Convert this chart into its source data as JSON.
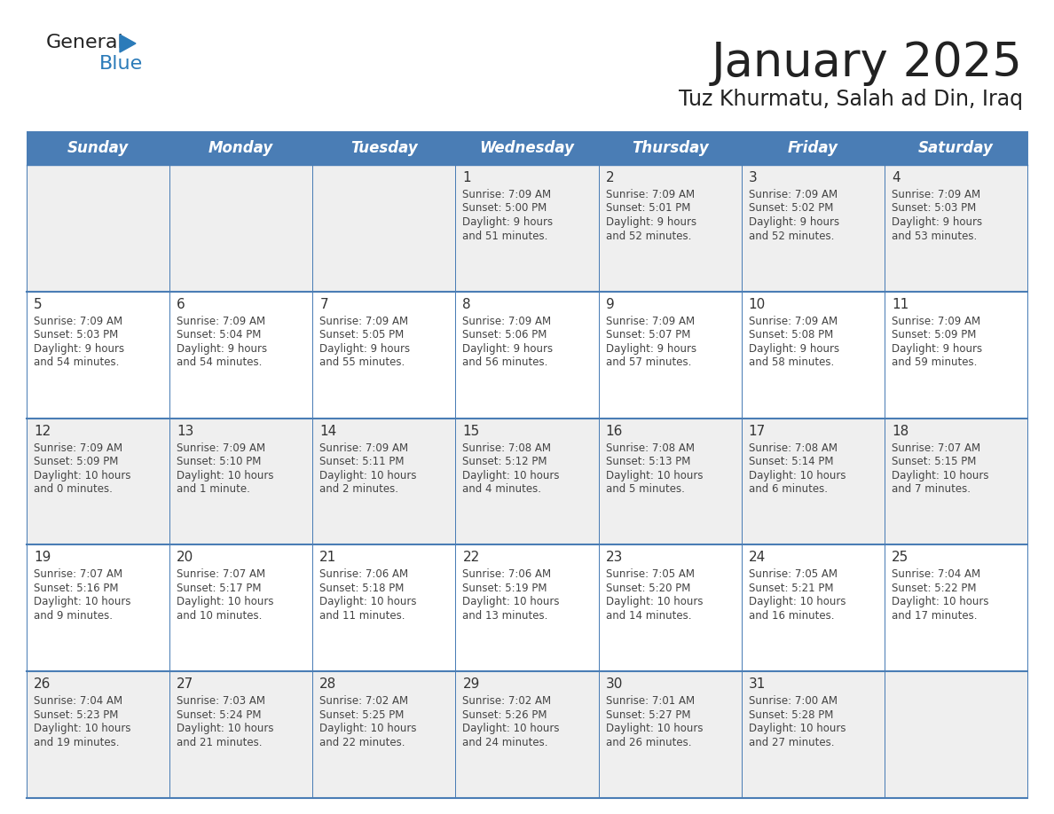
{
  "title": "January 2025",
  "subtitle": "Tuz Khurmatu, Salah ad Din, Iraq",
  "days_of_week": [
    "Sunday",
    "Monday",
    "Tuesday",
    "Wednesday",
    "Thursday",
    "Friday",
    "Saturday"
  ],
  "header_bg": "#4A7DB5",
  "header_text_color": "#FFFFFF",
  "cell_bg_odd": "#EFEFEF",
  "cell_bg_even": "#FFFFFF",
  "border_color": "#4A7DB5",
  "text_color": "#444444",
  "day_number_color": "#333333",
  "calendar_data": [
    [
      null,
      null,
      null,
      {
        "day": "1",
        "sunrise": "7:09 AM",
        "sunset": "5:00 PM",
        "daylight_h": "9 hours",
        "daylight_m": "and 51 minutes."
      },
      {
        "day": "2",
        "sunrise": "7:09 AM",
        "sunset": "5:01 PM",
        "daylight_h": "9 hours",
        "daylight_m": "and 52 minutes."
      },
      {
        "day": "3",
        "sunrise": "7:09 AM",
        "sunset": "5:02 PM",
        "daylight_h": "9 hours",
        "daylight_m": "and 52 minutes."
      },
      {
        "day": "4",
        "sunrise": "7:09 AM",
        "sunset": "5:03 PM",
        "daylight_h": "9 hours",
        "daylight_m": "and 53 minutes."
      }
    ],
    [
      {
        "day": "5",
        "sunrise": "7:09 AM",
        "sunset": "5:03 PM",
        "daylight_h": "9 hours",
        "daylight_m": "and 54 minutes."
      },
      {
        "day": "6",
        "sunrise": "7:09 AM",
        "sunset": "5:04 PM",
        "daylight_h": "9 hours",
        "daylight_m": "and 54 minutes."
      },
      {
        "day": "7",
        "sunrise": "7:09 AM",
        "sunset": "5:05 PM",
        "daylight_h": "9 hours",
        "daylight_m": "and 55 minutes."
      },
      {
        "day": "8",
        "sunrise": "7:09 AM",
        "sunset": "5:06 PM",
        "daylight_h": "9 hours",
        "daylight_m": "and 56 minutes."
      },
      {
        "day": "9",
        "sunrise": "7:09 AM",
        "sunset": "5:07 PM",
        "daylight_h": "9 hours",
        "daylight_m": "and 57 minutes."
      },
      {
        "day": "10",
        "sunrise": "7:09 AM",
        "sunset": "5:08 PM",
        "daylight_h": "9 hours",
        "daylight_m": "and 58 minutes."
      },
      {
        "day": "11",
        "sunrise": "7:09 AM",
        "sunset": "5:09 PM",
        "daylight_h": "9 hours",
        "daylight_m": "and 59 minutes."
      }
    ],
    [
      {
        "day": "12",
        "sunrise": "7:09 AM",
        "sunset": "5:09 PM",
        "daylight_h": "10 hours",
        "daylight_m": "and 0 minutes."
      },
      {
        "day": "13",
        "sunrise": "7:09 AM",
        "sunset": "5:10 PM",
        "daylight_h": "10 hours",
        "daylight_m": "and 1 minute."
      },
      {
        "day": "14",
        "sunrise": "7:09 AM",
        "sunset": "5:11 PM",
        "daylight_h": "10 hours",
        "daylight_m": "and 2 minutes."
      },
      {
        "day": "15",
        "sunrise": "7:08 AM",
        "sunset": "5:12 PM",
        "daylight_h": "10 hours",
        "daylight_m": "and 4 minutes."
      },
      {
        "day": "16",
        "sunrise": "7:08 AM",
        "sunset": "5:13 PM",
        "daylight_h": "10 hours",
        "daylight_m": "and 5 minutes."
      },
      {
        "day": "17",
        "sunrise": "7:08 AM",
        "sunset": "5:14 PM",
        "daylight_h": "10 hours",
        "daylight_m": "and 6 minutes."
      },
      {
        "day": "18",
        "sunrise": "7:07 AM",
        "sunset": "5:15 PM",
        "daylight_h": "10 hours",
        "daylight_m": "and 7 minutes."
      }
    ],
    [
      {
        "day": "19",
        "sunrise": "7:07 AM",
        "sunset": "5:16 PM",
        "daylight_h": "10 hours",
        "daylight_m": "and 9 minutes."
      },
      {
        "day": "20",
        "sunrise": "7:07 AM",
        "sunset": "5:17 PM",
        "daylight_h": "10 hours",
        "daylight_m": "and 10 minutes."
      },
      {
        "day": "21",
        "sunrise": "7:06 AM",
        "sunset": "5:18 PM",
        "daylight_h": "10 hours",
        "daylight_m": "and 11 minutes."
      },
      {
        "day": "22",
        "sunrise": "7:06 AM",
        "sunset": "5:19 PM",
        "daylight_h": "10 hours",
        "daylight_m": "and 13 minutes."
      },
      {
        "day": "23",
        "sunrise": "7:05 AM",
        "sunset": "5:20 PM",
        "daylight_h": "10 hours",
        "daylight_m": "and 14 minutes."
      },
      {
        "day": "24",
        "sunrise": "7:05 AM",
        "sunset": "5:21 PM",
        "daylight_h": "10 hours",
        "daylight_m": "and 16 minutes."
      },
      {
        "day": "25",
        "sunrise": "7:04 AM",
        "sunset": "5:22 PM",
        "daylight_h": "10 hours",
        "daylight_m": "and 17 minutes."
      }
    ],
    [
      {
        "day": "26",
        "sunrise": "7:04 AM",
        "sunset": "5:23 PM",
        "daylight_h": "10 hours",
        "daylight_m": "and 19 minutes."
      },
      {
        "day": "27",
        "sunrise": "7:03 AM",
        "sunset": "5:24 PM",
        "daylight_h": "10 hours",
        "daylight_m": "and 21 minutes."
      },
      {
        "day": "28",
        "sunrise": "7:02 AM",
        "sunset": "5:25 PM",
        "daylight_h": "10 hours",
        "daylight_m": "and 22 minutes."
      },
      {
        "day": "29",
        "sunrise": "7:02 AM",
        "sunset": "5:26 PM",
        "daylight_h": "10 hours",
        "daylight_m": "and 24 minutes."
      },
      {
        "day": "30",
        "sunrise": "7:01 AM",
        "sunset": "5:27 PM",
        "daylight_h": "10 hours",
        "daylight_m": "and 26 minutes."
      },
      {
        "day": "31",
        "sunrise": "7:00 AM",
        "sunset": "5:28 PM",
        "daylight_h": "10 hours",
        "daylight_m": "and 27 minutes."
      },
      null
    ]
  ],
  "logo_dark_color": "#222222",
  "logo_blue_color": "#2B7BB9"
}
